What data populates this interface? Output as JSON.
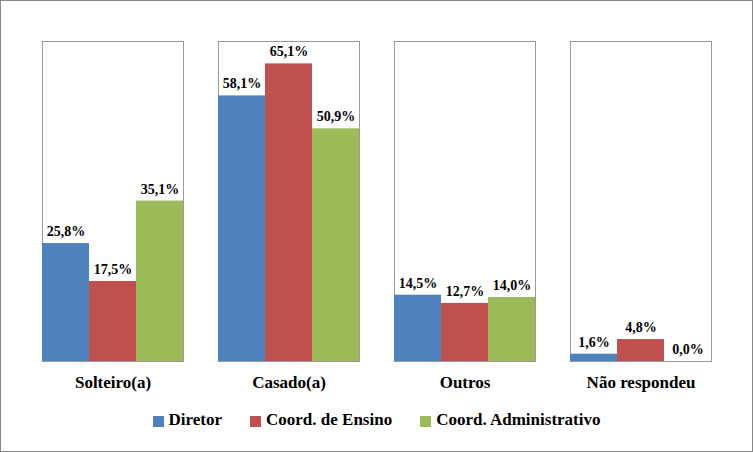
{
  "chart_data": {
    "type": "bar",
    "categories": [
      "Solteiro(a)",
      "Casado(a)",
      "Outros",
      "Não respondeu"
    ],
    "series": [
      {
        "name": "Diretor",
        "color": "#4f81bd",
        "values": [
          25.8,
          58.1,
          14.5,
          1.6
        ],
        "value_labels": [
          "25,8%",
          "58,1%",
          "14,5%",
          "1,6%"
        ]
      },
      {
        "name": "Coord. de Ensino",
        "color": "#c0504d",
        "values": [
          17.5,
          65.1,
          12.7,
          4.8
        ],
        "value_labels": [
          "17,5%",
          "65,1%",
          "12,7%",
          "4,8%"
        ]
      },
      {
        "name": "Coord. Administrativo",
        "color": "#9bbb59",
        "values": [
          35.1,
          50.9,
          14.0,
          0.0
        ],
        "value_labels": [
          "35,1%",
          "50,9%",
          "14,0%",
          "0,0%"
        ]
      }
    ],
    "ylim": [
      0,
      70
    ],
    "data_labels": true,
    "tick_labels": "x",
    "legend": "bottom"
  }
}
